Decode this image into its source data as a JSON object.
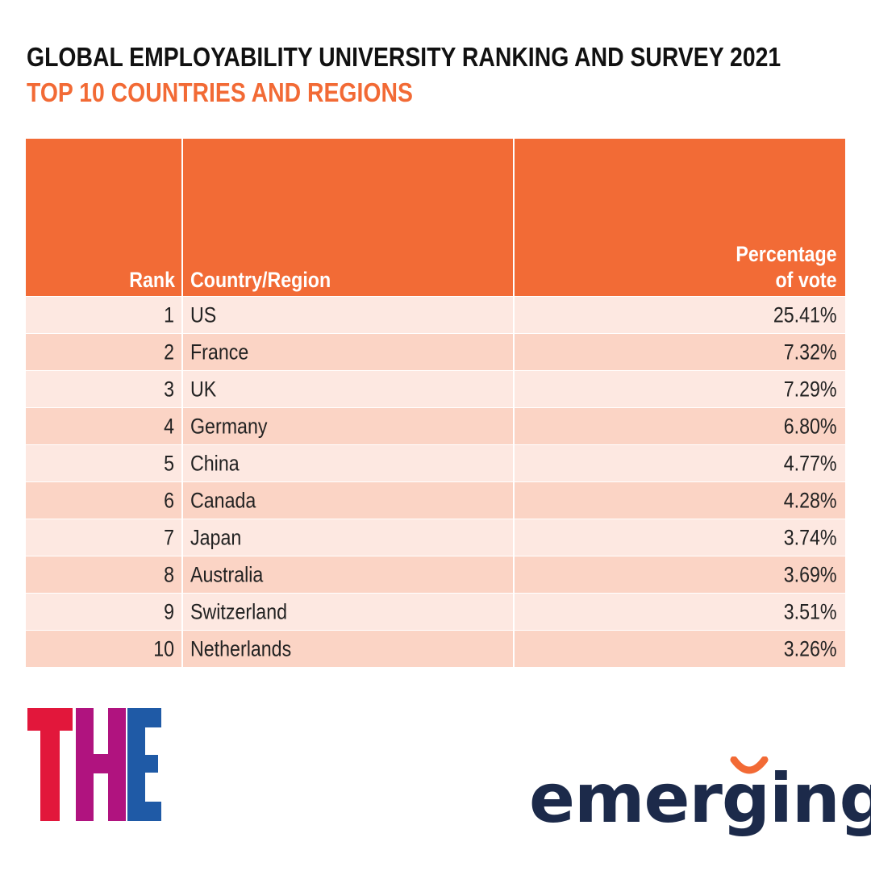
{
  "title": "GLOBAL EMPLOYABILITY UNIVERSITY RANKING AND SURVEY 2021",
  "subtitle": "TOP 10 COUNTRIES AND REGIONS",
  "table": {
    "headers": {
      "rank": "Rank",
      "country": "Country/Region",
      "pct_line1": "Percentage",
      "pct_line2": "of vote"
    },
    "rows": [
      {
        "rank": "1",
        "country": "US",
        "pct": "25.41%"
      },
      {
        "rank": "2",
        "country": "France",
        "pct": "7.32%"
      },
      {
        "rank": "3",
        "country": "UK",
        "pct": "7.29%"
      },
      {
        "rank": "4",
        "country": "Germany",
        "pct": "6.80%"
      },
      {
        "rank": "5",
        "country": "China",
        "pct": "4.77%"
      },
      {
        "rank": "6",
        "country": "Canada",
        "pct": "4.28%"
      },
      {
        "rank": "7",
        "country": "Japan",
        "pct": "3.74%"
      },
      {
        "rank": "8",
        "country": "Australia",
        "pct": "3.69%"
      },
      {
        "rank": "9",
        "country": "Switzerland",
        "pct": "3.51%"
      },
      {
        "rank": "10",
        "country": "Netherlands",
        "pct": "3.26%"
      }
    ]
  },
  "logos": {
    "the": {
      "text": "THE",
      "colors": [
        "#e2173b",
        "#b0137f",
        "#1f5aa6"
      ]
    },
    "emerging": {
      "text": "emerging",
      "color": "#1c2a4a",
      "accent": "#f26a35"
    }
  },
  "colors": {
    "accent": "#f26a35",
    "header_bg": "#f26b36",
    "row_light": "#fde8e1",
    "row_dark": "#fbd4c5"
  }
}
